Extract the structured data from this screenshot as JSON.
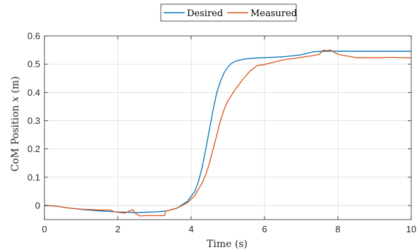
{
  "chart_data": {
    "type": "line",
    "title": "",
    "xlabel": "Time (s)",
    "ylabel_prefix": "CoM Position ",
    "ylabel_var": "x",
    "ylabel_suffix": " (m)",
    "xlim": [
      0,
      10
    ],
    "ylim": [
      -0.05,
      0.6
    ],
    "xticks": [
      0,
      2,
      4,
      6,
      8,
      10
    ],
    "yticks": [
      0,
      0.1,
      0.2,
      0.3,
      0.4,
      0.5,
      0.6
    ],
    "xtick_labels": [
      "0",
      "2",
      "4",
      "6",
      "8",
      "10"
    ],
    "ytick_labels": [
      "0",
      "0.1",
      "0.2",
      "0.3",
      "0.4",
      "0.5",
      "0.6"
    ],
    "grid": true,
    "legend_position": "top-center, outside",
    "series": [
      {
        "name": "Desired",
        "color": "#0072BD",
        "x": [
          0,
          0.3,
          0.6,
          1.0,
          1.5,
          2.0,
          2.5,
          3.0,
          3.3,
          3.6,
          3.9,
          4.1,
          4.2,
          4.3,
          4.4,
          4.5,
          4.6,
          4.7,
          4.8,
          4.9,
          5.0,
          5.1,
          5.2,
          5.4,
          5.6,
          5.8,
          6.0,
          6.5,
          7.0,
          7.3,
          7.5,
          7.8,
          8.0,
          9.0,
          10.0
        ],
        "y": [
          0.0,
          -0.002,
          -0.008,
          -0.014,
          -0.019,
          -0.023,
          -0.025,
          -0.023,
          -0.02,
          -0.01,
          0.015,
          0.05,
          0.085,
          0.135,
          0.2,
          0.27,
          0.34,
          0.4,
          0.44,
          0.47,
          0.49,
          0.503,
          0.51,
          0.517,
          0.52,
          0.522,
          0.523,
          0.526,
          0.533,
          0.543,
          0.545,
          0.546,
          0.546,
          0.546,
          0.546
        ]
      },
      {
        "name": "Measured",
        "color": "#D95319",
        "x": [
          0,
          0.3,
          0.6,
          1.0,
          1.5,
          1.8,
          1.9,
          2.0,
          2.2,
          2.3,
          2.4,
          2.5,
          2.6,
          2.8,
          3.0,
          3.2,
          3.28,
          3.3,
          3.6,
          3.9,
          4.1,
          4.3,
          4.4,
          4.5,
          4.6,
          4.7,
          4.8,
          4.9,
          5.0,
          5.2,
          5.4,
          5.6,
          5.8,
          6.0,
          6.2,
          6.5,
          7.0,
          7.3,
          7.5,
          7.6,
          7.7,
          7.8,
          7.9,
          8.0,
          8.2,
          8.5,
          9.0,
          9.5,
          10.0
        ],
        "y": [
          0.0,
          -0.002,
          -0.008,
          -0.013,
          -0.016,
          -0.016,
          -0.022,
          -0.024,
          -0.027,
          -0.02,
          -0.015,
          -0.03,
          -0.037,
          -0.036,
          -0.036,
          -0.036,
          -0.036,
          -0.02,
          -0.01,
          0.01,
          0.035,
          0.08,
          0.11,
          0.15,
          0.2,
          0.25,
          0.3,
          0.34,
          0.37,
          0.41,
          0.445,
          0.475,
          0.495,
          0.499,
          0.505,
          0.515,
          0.524,
          0.53,
          0.535,
          0.55,
          0.548,
          0.55,
          0.542,
          0.535,
          0.53,
          0.523,
          0.523,
          0.524,
          0.522
        ]
      }
    ]
  }
}
